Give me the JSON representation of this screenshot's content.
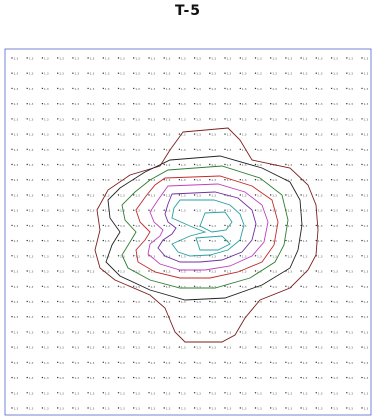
{
  "title": "T-5",
  "colors": {
    "frame": "#5566cc",
    "grid_dot": "#333333",
    "outer_contour": "#7a1f1f",
    "contour_dark": "#222222",
    "contour_green": "#2f7d2f",
    "contour_red": "#c22a2a",
    "contour_magenta": "#c040c0",
    "contour_purple": "#7030a0",
    "contour_teal": "#2aa0a0"
  },
  "chart_data": {
    "type": "contour",
    "title": "T-5",
    "grid": {
      "columns": 24,
      "rows": 24
    },
    "point_label": "1.3",
    "levels": [
      {
        "name": "",
        "color": "outer_contour"
      },
      {
        "name": "",
        "color": "contour_dark"
      },
      {
        "name": "",
        "color": "contour_green"
      },
      {
        "name": "",
        "color": "contour_red"
      },
      {
        "name": "",
        "color": "contour_magenta"
      },
      {
        "name": "",
        "color": "contour_purple"
      },
      {
        "name": "",
        "color": "contour_teal"
      }
    ]
  }
}
